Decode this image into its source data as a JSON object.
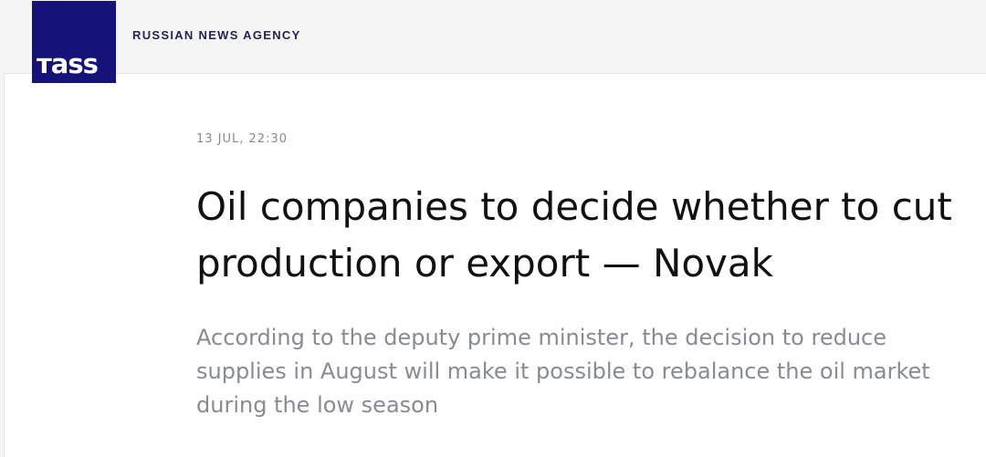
{
  "header": {
    "logo_text": "TASS",
    "logo_color": "#15137a",
    "agency": "RUSSIAN NEWS AGENCY"
  },
  "article": {
    "date": "13 JUL, 22:30",
    "title": "Oil companies to decide whether to cut production or export — Novak",
    "lead": "According to the deputy prime minister, the decision to reduce supplies in August will make it possible to rebalance the oil market during the low season"
  }
}
